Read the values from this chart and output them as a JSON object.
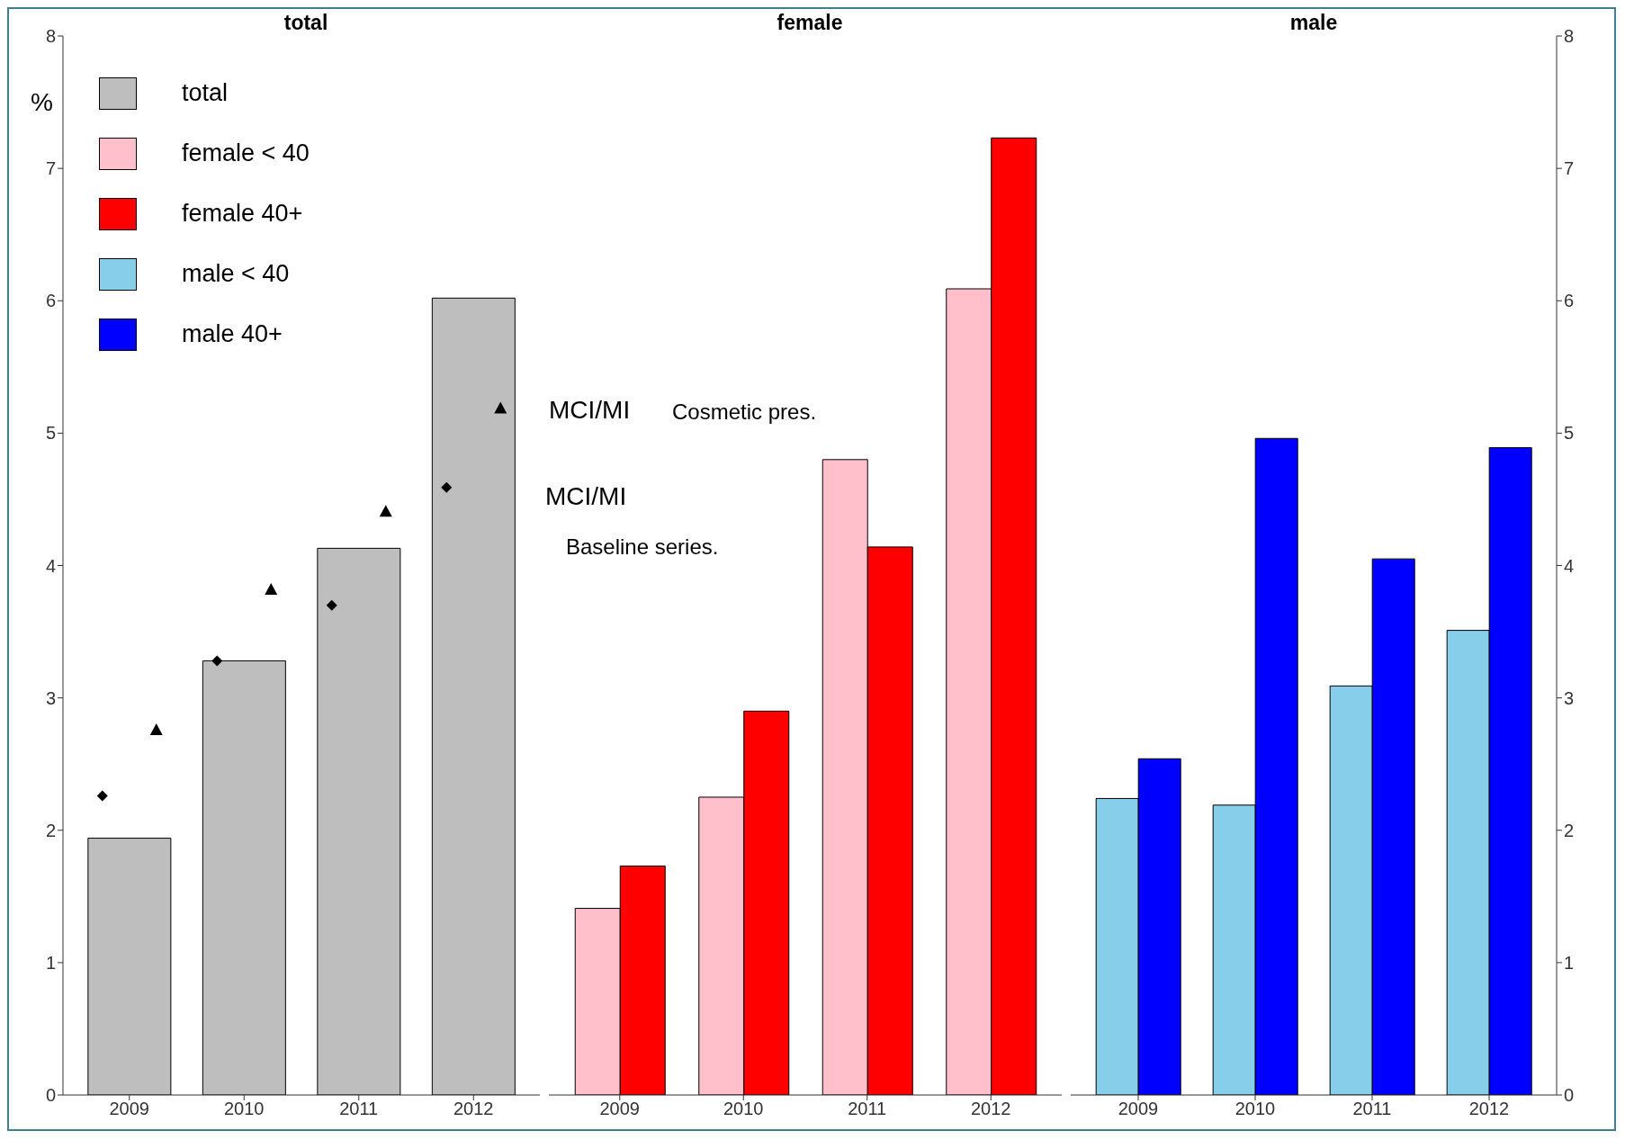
{
  "chart_data": [
    {
      "type": "bar",
      "title": "total",
      "ylabel": "%",
      "categories": [
        "2009",
        "2010",
        "2011",
        "2012"
      ],
      "ylim": [
        0,
        8
      ],
      "yticks": [
        0,
        1,
        2,
        3,
        4,
        5,
        6,
        7,
        8
      ],
      "grid": false,
      "legend": "top left",
      "annotations": [
        "MCI/MI",
        "Cosmetic pres.",
        "MCI/MI",
        "Baseline series."
      ],
      "series": [
        {
          "name": "total",
          "color": "#bebebe",
          "values": [
            1.94,
            3.28,
            4.13,
            6.02
          ]
        },
        {
          "type": "scatter",
          "marker": "diamond",
          "color": "#000000",
          "values": [
            2.26,
            3.28,
            3.7,
            4.59
          ]
        },
        {
          "type": "scatter",
          "marker": "triangle",
          "color": "#000000",
          "values": [
            2.76,
            3.82,
            4.41,
            5.19
          ]
        }
      ]
    },
    {
      "type": "bar",
      "title": "female",
      "categories": [
        "2009",
        "2010",
        "2011",
        "2012"
      ],
      "ylim": [
        0,
        8
      ],
      "yticks": [
        0,
        1,
        2,
        3,
        4,
        5,
        6,
        7,
        8
      ],
      "grid": false,
      "tick_labels": "x",
      "legend": "top left",
      "series": [
        {
          "name": "female < 40",
          "color": "#ffc0cb",
          "values": [
            1.41,
            2.25,
            4.8,
            6.09
          ]
        },
        {
          "name": "female 40+",
          "color": "#ff0000",
          "values": [
            1.73,
            2.9,
            4.14,
            7.23
          ]
        }
      ]
    },
    {
      "type": "bar",
      "title": "male",
      "categories": [
        "2009",
        "2010",
        "2011",
        "2012"
      ],
      "ylim": [
        0,
        8
      ],
      "yticks": [
        0,
        1,
        2,
        3,
        4,
        5,
        6,
        7,
        8
      ],
      "grid": false,
      "legend": "top left",
      "series": [
        {
          "name": "male < 40",
          "color": "#87ceeb",
          "values": [
            2.24,
            2.19,
            3.09,
            3.51
          ]
        },
        {
          "name": "male 40+",
          "color": "#0000ff",
          "values": [
            2.54,
            4.96,
            4.05,
            4.89
          ]
        }
      ]
    }
  ]
}
